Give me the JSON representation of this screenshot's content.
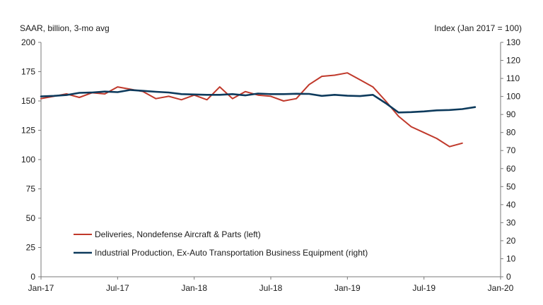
{
  "chart_data": {
    "type": "line",
    "title": "",
    "left_axis_label": "SAAR, billion, 3-mo avg",
    "right_axis_label": "Index (Jan 2017 = 100)",
    "x_ticks": [
      "Jan-17",
      "Jul-17",
      "Jan-18",
      "Jul-18",
      "Jan-19",
      "Jul-19",
      "Jan-20"
    ],
    "x_range": [
      "2017-01",
      "2020-01"
    ],
    "ylim_left": [
      0,
      200
    ],
    "yticks_left": [
      0,
      25,
      50,
      75,
      100,
      125,
      150,
      175,
      200
    ],
    "ylim_right": [
      0,
      130
    ],
    "yticks_right": [
      0,
      10,
      20,
      30,
      40,
      50,
      60,
      70,
      80,
      90,
      100,
      110,
      120,
      130
    ],
    "grid": false,
    "legend_position": "bottom-left",
    "series": [
      {
        "name": "Deliveries, Nondefense Aircraft & Parts (left)",
        "axis": "left",
        "color": "#c0392b",
        "x": [
          "2017-01",
          "2017-02",
          "2017-03",
          "2017-04",
          "2017-05",
          "2017-06",
          "2017-07",
          "2017-08",
          "2017-09",
          "2017-10",
          "2017-11",
          "2017-12",
          "2018-01",
          "2018-02",
          "2018-03",
          "2018-04",
          "2018-05",
          "2018-06",
          "2018-07",
          "2018-08",
          "2018-09",
          "2018-10",
          "2018-11",
          "2018-12",
          "2019-01",
          "2019-02",
          "2019-03",
          "2019-04",
          "2019-05",
          "2019-06",
          "2019-07",
          "2019-08",
          "2019-09",
          "2019-10"
        ],
        "values": [
          152,
          154,
          156,
          153,
          157,
          156,
          162,
          160,
          158,
          152,
          154,
          151,
          155,
          151,
          162,
          152,
          158,
          155,
          154,
          150,
          152,
          164,
          171,
          172,
          174,
          168,
          162,
          150,
          137,
          128,
          123,
          118,
          111,
          114
        ]
      },
      {
        "name": "Industrial Production, Ex-Auto Transportation Business Equipment (right)",
        "axis": "right",
        "color": "#0d3a5c",
        "x": [
          "2017-01",
          "2017-02",
          "2017-03",
          "2017-04",
          "2017-05",
          "2017-06",
          "2017-07",
          "2017-08",
          "2017-09",
          "2017-10",
          "2017-11",
          "2017-12",
          "2018-01",
          "2018-02",
          "2018-03",
          "2018-04",
          "2018-05",
          "2018-06",
          "2018-07",
          "2018-08",
          "2018-09",
          "2018-10",
          "2018-11",
          "2018-12",
          "2019-01",
          "2019-02",
          "2019-03",
          "2019-04",
          "2019-05",
          "2019-06",
          "2019-07",
          "2019-08",
          "2019-09",
          "2019-10",
          "2019-11"
        ],
        "values": [
          100,
          100.3,
          100.8,
          102,
          102.2,
          102.7,
          102.4,
          103.6,
          103.1,
          102.6,
          102.2,
          101.3,
          101.1,
          100.9,
          100.9,
          101.3,
          100.6,
          101.6,
          101.3,
          101.3,
          101.5,
          101.4,
          100.3,
          100.9,
          100.4,
          100.2,
          100.9,
          96.3,
          91.1,
          91.3,
          91.7,
          92.3,
          92.5,
          93.0,
          94.1
        ]
      }
    ]
  }
}
